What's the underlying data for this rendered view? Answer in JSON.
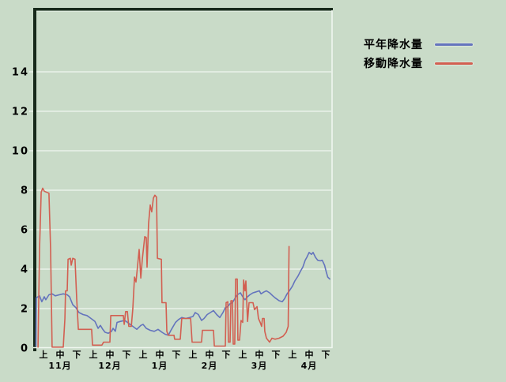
{
  "legend": {
    "items": [
      {
        "label": "平年降水量",
        "color": "#6474bd"
      },
      {
        "label": "移動降水量",
        "color": "#d25f51"
      }
    ]
  },
  "colors": {
    "background": "#c9dbc8",
    "border_dark": "#17291a",
    "grid_line": "#e9f2e9",
    "edge_highlight": "#f0f7f0",
    "text": "#000000"
  },
  "chart_data": {
    "type": "line",
    "title": "",
    "xlabel": "",
    "ylabel": "",
    "x_axis": {
      "period_labels": [
        "上",
        "中",
        "下"
      ],
      "month_labels": [
        "11月",
        "12月",
        "1月",
        "2月",
        "3月",
        "4月"
      ],
      "days_per_period": 10,
      "range_days": [
        0,
        180
      ]
    },
    "y_axis": {
      "tick_values": [
        0,
        2,
        4,
        6,
        8,
        10,
        12,
        14
      ],
      "ylim": [
        0,
        17
      ],
      "grid": true
    },
    "series": [
      {
        "name": "平年降水量",
        "color": "#6474bd",
        "points": [
          [
            0.5,
            0.1
          ],
          [
            0.7,
            2.55
          ],
          [
            2.6,
            2.65
          ],
          [
            4,
            2.35
          ],
          [
            5.5,
            2.6
          ],
          [
            6.4,
            2.45
          ],
          [
            8.3,
            2.7
          ],
          [
            10.2,
            2.75
          ],
          [
            12.1,
            2.65
          ],
          [
            14.5,
            2.7
          ],
          [
            16.9,
            2.75
          ],
          [
            19.3,
            2.7
          ],
          [
            20.7,
            2.6
          ],
          [
            22.6,
            2.2
          ],
          [
            24.5,
            2.05
          ],
          [
            26.4,
            1.8
          ],
          [
            28.8,
            1.7
          ],
          [
            31.2,
            1.65
          ],
          [
            33.6,
            1.5
          ],
          [
            36,
            1.35
          ],
          [
            37.9,
            1.0
          ],
          [
            39.3,
            1.15
          ],
          [
            40.7,
            0.95
          ],
          [
            42.1,
            0.8
          ],
          [
            44,
            0.75
          ],
          [
            46,
            0.85
          ],
          [
            46.9,
            1.0
          ],
          [
            48.3,
            0.85
          ],
          [
            49.3,
            1.3
          ],
          [
            51.2,
            1.35
          ],
          [
            54,
            1.4
          ],
          [
            56.4,
            1.25
          ],
          [
            58.8,
            1.1
          ],
          [
            61.2,
            0.95
          ],
          [
            63.6,
            1.15
          ],
          [
            65,
            1.2
          ],
          [
            66.9,
            1.0
          ],
          [
            69.3,
            0.9
          ],
          [
            71.7,
            0.85
          ],
          [
            74,
            0.95
          ],
          [
            76.4,
            0.8
          ],
          [
            78.3,
            0.7
          ],
          [
            80.2,
            0.65
          ],
          [
            82.1,
            0.95
          ],
          [
            84.5,
            1.3
          ],
          [
            86.4,
            1.45
          ],
          [
            88.3,
            1.55
          ],
          [
            90.7,
            1.5
          ],
          [
            93.1,
            1.55
          ],
          [
            95,
            1.6
          ],
          [
            96.4,
            1.8
          ],
          [
            98.3,
            1.7
          ],
          [
            100.2,
            1.4
          ],
          [
            101.7,
            1.5
          ],
          [
            103.6,
            1.7
          ],
          [
            105.5,
            1.8
          ],
          [
            107.4,
            1.9
          ],
          [
            109.3,
            1.7
          ],
          [
            111.2,
            1.55
          ],
          [
            113.1,
            1.8
          ],
          [
            114.5,
            2.05
          ],
          [
            116,
            2.1
          ],
          [
            117.4,
            2.25
          ],
          [
            118.8,
            2.3
          ],
          [
            120.2,
            2.5
          ],
          [
            121.7,
            2.7
          ],
          [
            123.6,
            2.8
          ],
          [
            125,
            2.6
          ],
          [
            126.4,
            2.45
          ],
          [
            127.9,
            2.6
          ],
          [
            129.3,
            2.7
          ],
          [
            131.2,
            2.8
          ],
          [
            133.1,
            2.85
          ],
          [
            135,
            2.9
          ],
          [
            136,
            2.75
          ],
          [
            137.9,
            2.85
          ],
          [
            139.3,
            2.9
          ],
          [
            141.2,
            2.8
          ],
          [
            143.1,
            2.65
          ],
          [
            144.5,
            2.55
          ],
          [
            146.9,
            2.4
          ],
          [
            148.8,
            2.35
          ],
          [
            150.2,
            2.5
          ],
          [
            151.7,
            2.75
          ],
          [
            153.1,
            2.9
          ],
          [
            155,
            3.15
          ],
          [
            156.4,
            3.4
          ],
          [
            158.3,
            3.65
          ],
          [
            159.8,
            3.9
          ],
          [
            161.2,
            4.1
          ],
          [
            162.6,
            4.45
          ],
          [
            163.6,
            4.6
          ],
          [
            165,
            4.85
          ],
          [
            166.4,
            4.75
          ],
          [
            167.4,
            4.85
          ],
          [
            168.8,
            4.6
          ],
          [
            170.2,
            4.45
          ],
          [
            171.7,
            4.42
          ],
          [
            172.9,
            4.45
          ],
          [
            174.3,
            4.2
          ],
          [
            175.2,
            3.9
          ],
          [
            176.2,
            3.6
          ],
          [
            177.4,
            3.5
          ]
        ]
      },
      {
        "name": "移動降水量",
        "color": "#d25f51",
        "points": [
          [
            1.7,
            0.05
          ],
          [
            2.6,
            5.0
          ],
          [
            3.6,
            7.9
          ],
          [
            4.5,
            8.1
          ],
          [
            5.5,
            7.95
          ],
          [
            8.3,
            7.85
          ],
          [
            9.3,
            5.0
          ],
          [
            10.2,
            0.05
          ],
          [
            16.9,
            0.05
          ],
          [
            17.9,
            1.5
          ],
          [
            18.3,
            2.9
          ],
          [
            19.3,
            2.9
          ],
          [
            19.8,
            4.5
          ],
          [
            21.2,
            4.55
          ],
          [
            21.7,
            4.2
          ],
          [
            22.6,
            4.55
          ],
          [
            24,
            4.5
          ],
          [
            25,
            2.5
          ],
          [
            26,
            0.95
          ],
          [
            34,
            0.95
          ],
          [
            34.5,
            0.15
          ],
          [
            40.2,
            0.15
          ],
          [
            41.2,
            0.3
          ],
          [
            45,
            0.3
          ],
          [
            45.5,
            1.65
          ],
          [
            53.1,
            1.65
          ],
          [
            53.6,
            1.2
          ],
          [
            54.5,
            1.85
          ],
          [
            55.5,
            1.85
          ],
          [
            56.4,
            1.1
          ],
          [
            57.9,
            1.1
          ],
          [
            58.8,
            2.0
          ],
          [
            59.8,
            3.6
          ],
          [
            60.7,
            3.35
          ],
          [
            61.7,
            4.2
          ],
          [
            62.6,
            5.0
          ],
          [
            63.6,
            3.55
          ],
          [
            64.5,
            4.5
          ],
          [
            66,
            5.65
          ],
          [
            66.9,
            5.6
          ],
          [
            67.4,
            4.1
          ],
          [
            68.3,
            6.3
          ],
          [
            69.3,
            7.25
          ],
          [
            70.2,
            6.9
          ],
          [
            71.2,
            7.6
          ],
          [
            72.1,
            7.75
          ],
          [
            73.1,
            7.65
          ],
          [
            73.6,
            4.55
          ],
          [
            76,
            4.5
          ],
          [
            76.4,
            2.3
          ],
          [
            78.8,
            2.3
          ],
          [
            79.3,
            0.85
          ],
          [
            80.2,
            0.65
          ],
          [
            83.6,
            0.65
          ],
          [
            84,
            0.45
          ],
          [
            87.4,
            0.45
          ],
          [
            88.3,
            1.5
          ],
          [
            93.6,
            1.5
          ],
          [
            94.5,
            0.3
          ],
          [
            100.2,
            0.3
          ],
          [
            100.7,
            0.9
          ],
          [
            107.4,
            0.9
          ],
          [
            107.9,
            0.1
          ],
          [
            114.5,
            0.1
          ],
          [
            115,
            2.3
          ],
          [
            116,
            2.35
          ],
          [
            116.4,
            0.3
          ],
          [
            117.4,
            0.3
          ],
          [
            117.9,
            2.4
          ],
          [
            118.8,
            2.4
          ],
          [
            119.3,
            0.2
          ],
          [
            120.2,
            0.2
          ],
          [
            120.7,
            3.5
          ],
          [
            121.7,
            3.5
          ],
          [
            122.1,
            0.4
          ],
          [
            123.1,
            0.4
          ],
          [
            124,
            1.4
          ],
          [
            125,
            1.3
          ],
          [
            125.5,
            3.45
          ],
          [
            126.4,
            2.9
          ],
          [
            126.9,
            3.4
          ],
          [
            127.9,
            1.35
          ],
          [
            128.8,
            2.3
          ],
          [
            131.2,
            2.3
          ],
          [
            132.1,
            1.95
          ],
          [
            133.6,
            2.1
          ],
          [
            134.5,
            1.5
          ],
          [
            135.5,
            1.3
          ],
          [
            136.4,
            1.1
          ],
          [
            136.9,
            1.5
          ],
          [
            137.9,
            1.5
          ],
          [
            138.3,
            0.85
          ],
          [
            139.3,
            0.5
          ],
          [
            141.2,
            0.3
          ],
          [
            142.6,
            0.5
          ],
          [
            144.5,
            0.45
          ],
          [
            146.9,
            0.5
          ],
          [
            149.3,
            0.6
          ],
          [
            151.2,
            0.8
          ],
          [
            152.4,
            1.1
          ],
          [
            152.9,
            5.15
          ]
        ]
      }
    ],
    "legend_position": "top-right-outside"
  }
}
